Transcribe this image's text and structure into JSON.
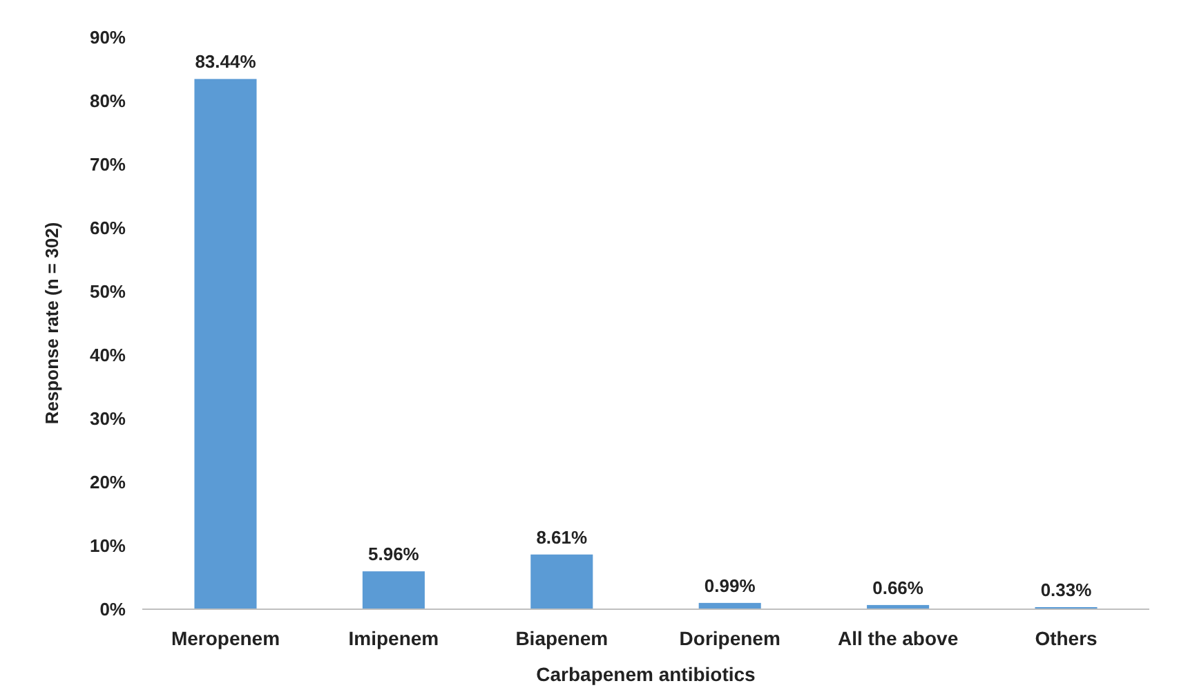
{
  "chart_data": {
    "type": "bar",
    "xlabel": "Carbapenem antibiotics",
    "ylabel": "Response rate (n = 302)",
    "categories": [
      "Meropenem",
      "Imipenem",
      "Biapenem",
      "Doripenem",
      "All the above",
      "Others"
    ],
    "values": [
      83.44,
      5.96,
      8.61,
      0.99,
      0.66,
      0.33
    ],
    "value_labels": [
      "83.44%",
      "5.96%",
      "8.61%",
      "0.99%",
      "0.66%",
      "0.33%"
    ],
    "color": "#5b9bd5",
    "ylim": [
      0,
      90
    ],
    "yticks": [
      {
        "value": 0,
        "label": "0%"
      },
      {
        "value": 10,
        "label": "10%"
      },
      {
        "value": 20,
        "label": "20%"
      },
      {
        "value": 30,
        "label": "30%"
      },
      {
        "value": 40,
        "label": "40%"
      },
      {
        "value": 50,
        "label": "50%"
      },
      {
        "value": 60,
        "label": "60%"
      },
      {
        "value": 70,
        "label": "70%"
      },
      {
        "value": 80,
        "label": "80%"
      },
      {
        "value": 90,
        "label": "90%"
      }
    ],
    "grid": false
  }
}
